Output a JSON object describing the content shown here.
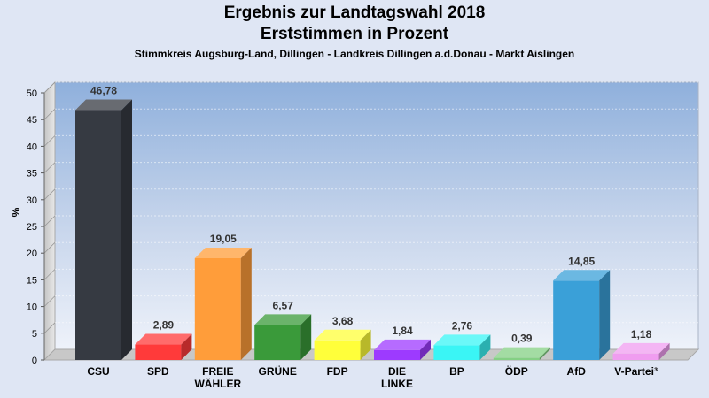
{
  "chart_data": {
    "type": "bar",
    "title": "Ergebnis zur Landtagswahl 2018",
    "title2": "Erststimmen in Prozent",
    "subtitle": "Stimmkreis Augsburg-Land, Dillingen - Landkreis Dillingen a.d.Donau - Markt Aislingen",
    "ylabel": "%",
    "ylim": [
      0,
      50
    ],
    "yticks": [
      0,
      5,
      10,
      15,
      20,
      25,
      30,
      35,
      40,
      45,
      50
    ],
    "categories": [
      [
        "CSU"
      ],
      [
        "SPD"
      ],
      [
        "FREIE",
        "WÄHLER"
      ],
      [
        "GRÜNE"
      ],
      [
        "FDP"
      ],
      [
        "DIE",
        "LINKE"
      ],
      [
        "BP"
      ],
      [
        "ÖDP"
      ],
      [
        "AfD"
      ],
      [
        "V-Partei³"
      ]
    ],
    "values": [
      46.78,
      2.89,
      19.05,
      6.57,
      3.68,
      1.84,
      2.76,
      0.39,
      14.85,
      1.18
    ],
    "value_labels": [
      "46,78",
      "2,89",
      "19,05",
      "6,57",
      "3,68",
      "1,84",
      "2,76",
      "0,39",
      "14,85",
      "1,18"
    ],
    "colors": [
      "#363a42",
      "#ff3a3a",
      "#ff9d3a",
      "#3a9a3a",
      "#ffff3a",
      "#9d3aff",
      "#3af5f5",
      "#84d084",
      "#3aa0d8",
      "#f09df0"
    ],
    "grid": true
  }
}
